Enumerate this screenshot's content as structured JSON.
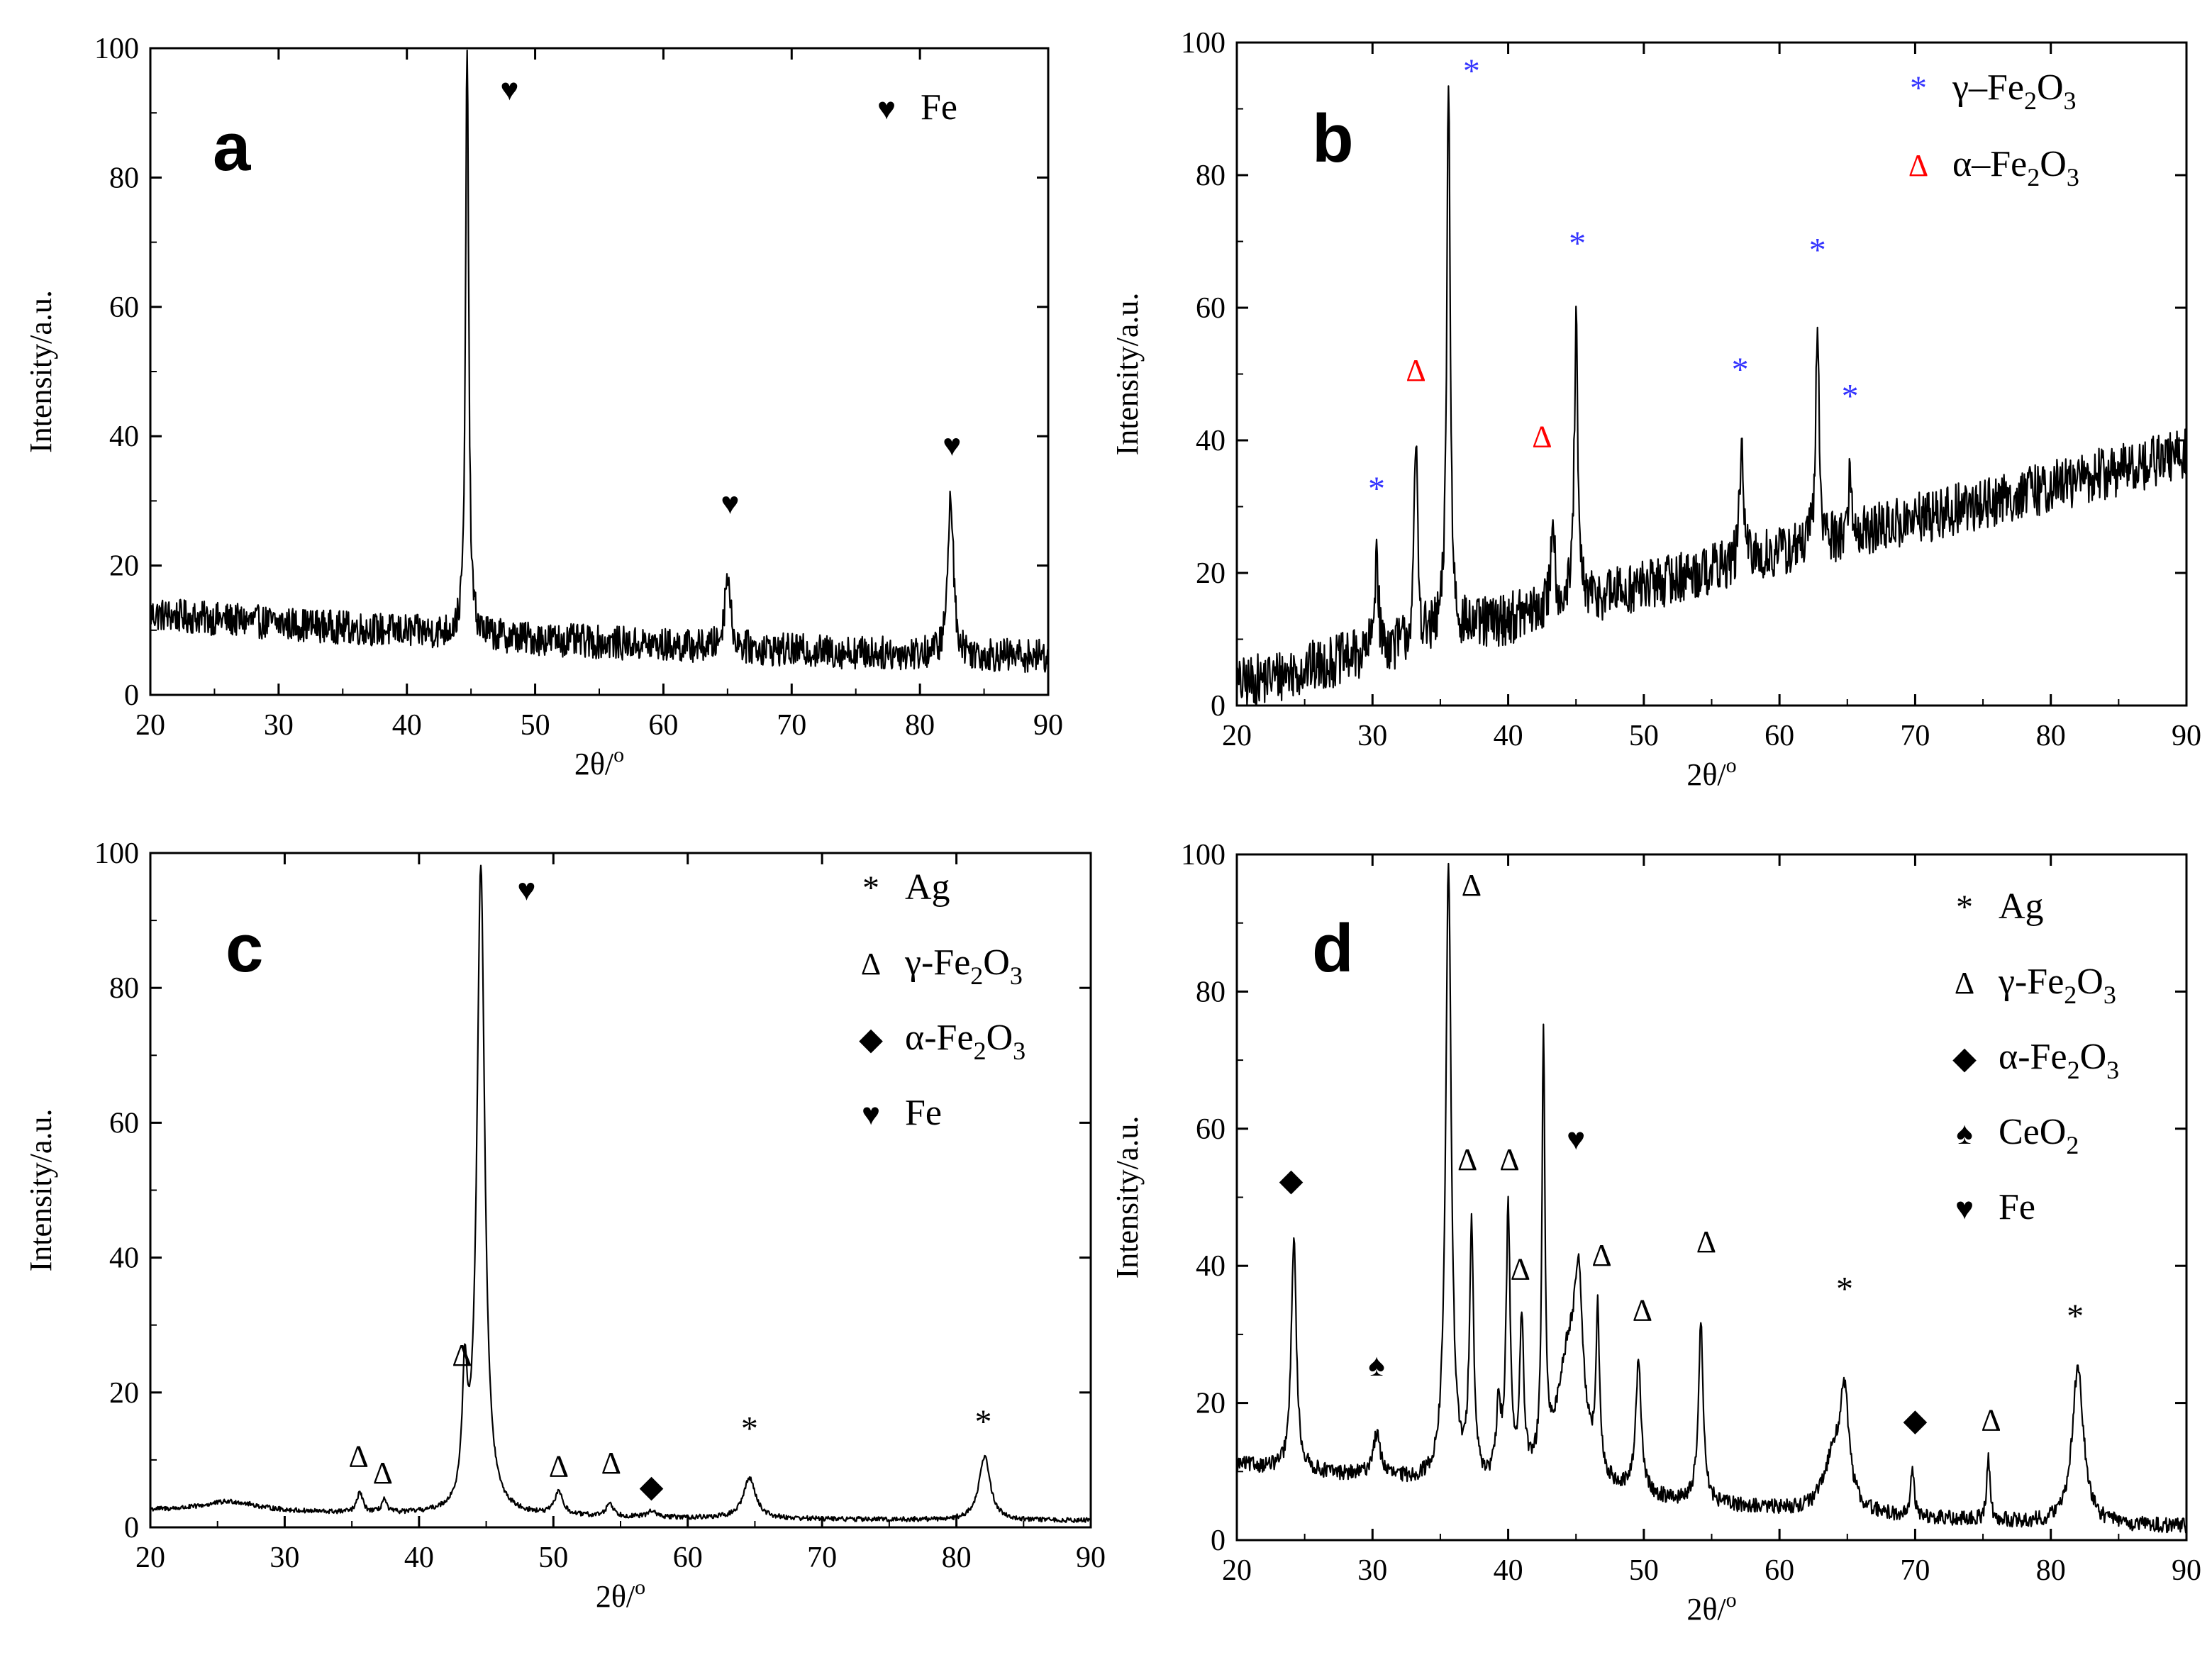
{
  "figure": {
    "description_domain": "XRD patterns, four panels"
  },
  "chart_data": [
    {
      "id": "a",
      "type": "line",
      "panel_label": "a",
      "xlabel": "2θ/",
      "xlabel_sup": "o",
      "ylabel": "Intensity/a.u.",
      "xlim": [
        20,
        90
      ],
      "ylim": [
        0,
        100
      ],
      "xticks": [
        20,
        30,
        40,
        50,
        60,
        70,
        80,
        90
      ],
      "yticks": [
        0,
        20,
        40,
        60,
        80,
        100
      ],
      "line_color": "#000000",
      "baseline": {
        "start": 12.5,
        "end": 6,
        "noise": 2.6
      },
      "peaks": [
        {
          "x": 44.7,
          "h": 93,
          "w": 0.14
        },
        {
          "x": 65.0,
          "h": 12,
          "w": 0.25
        },
        {
          "x": 82.4,
          "h": 25,
          "w": 0.25
        }
      ],
      "markers": [
        {
          "symbol": "♥",
          "x": 48.0,
          "y": 92,
          "color": "#000000"
        },
        {
          "symbol": "♥",
          "x": 65.2,
          "y": 28,
          "color": "#000000"
        },
        {
          "symbol": "♥",
          "x": 82.5,
          "y": 37,
          "color": "#000000"
        }
      ],
      "legend": [
        {
          "symbol": "♥",
          "label": "Fe",
          "sub": "",
          "color": "#000000"
        }
      ],
      "legend_position": "top-right"
    },
    {
      "id": "b",
      "type": "line",
      "panel_label": "b",
      "xlabel": "2θ/",
      "xlabel_sup": "o",
      "ylabel": "Intensity/a.u.",
      "xlim": [
        20,
        90
      ],
      "ylim": [
        0,
        100
      ],
      "xticks": [
        20,
        30,
        40,
        50,
        60,
        70,
        80,
        90
      ],
      "yticks": [
        0,
        20,
        40,
        60,
        80,
        100
      ],
      "line_color": "#000000",
      "baseline": {
        "start": 3,
        "end": 38,
        "noise": 4
      },
      "peaks": [
        {
          "x": 30.3,
          "h": 16,
          "w": 0.15
        },
        {
          "x": 33.2,
          "h": 30,
          "w": 0.15
        },
        {
          "x": 35.6,
          "h": 84,
          "w": 0.15
        },
        {
          "x": 43.3,
          "h": 15,
          "w": 0.15
        },
        {
          "x": 45.0,
          "h": 42,
          "w": 0.15
        },
        {
          "x": 57.2,
          "h": 19,
          "w": 0.15
        },
        {
          "x": 62.8,
          "h": 33,
          "w": 0.15
        },
        {
          "x": 65.2,
          "h": 9,
          "w": 0.15
        }
      ],
      "markers": [
        {
          "symbol": "*",
          "x": 30.3,
          "y": 31,
          "color": "#3333ff"
        },
        {
          "symbol": "Δ",
          "x": 33.2,
          "y": 49,
          "color": "#ff0000"
        },
        {
          "symbol": "*",
          "x": 37.3,
          "y": 94,
          "color": "#3333ff"
        },
        {
          "symbol": "Δ",
          "x": 42.5,
          "y": 39,
          "color": "#ff0000"
        },
        {
          "symbol": "*",
          "x": 45.1,
          "y": 68,
          "color": "#3333ff"
        },
        {
          "symbol": "*",
          "x": 57.1,
          "y": 49,
          "color": "#3333ff"
        },
        {
          "symbol": "*",
          "x": 62.8,
          "y": 67,
          "color": "#3333ff"
        },
        {
          "symbol": "*",
          "x": 65.2,
          "y": 45,
          "color": "#3333ff"
        }
      ],
      "legend": [
        {
          "symbol": "*",
          "label": "γ–Fe",
          "sub": "2",
          "label2": "O",
          "sub2": "3",
          "color": "#3333ff"
        },
        {
          "symbol": "Δ",
          "label": "α–Fe",
          "sub": "2",
          "label2": "O",
          "sub2": "3",
          "color": "#ff0000"
        }
      ],
      "legend_position": "top-right"
    },
    {
      "id": "c",
      "type": "line",
      "panel_label": "c",
      "xlabel": "2θ/",
      "xlabel_sup": "o",
      "ylabel": "Intensity/a.u.",
      "xlim": [
        20,
        90
      ],
      "ylim": [
        0,
        100
      ],
      "xticks": [
        20,
        30,
        40,
        50,
        60,
        70,
        80,
        90
      ],
      "yticks": [
        0,
        20,
        40,
        60,
        80,
        100
      ],
      "line_color": "#000000",
      "baseline": {
        "start": 2.5,
        "end": 1,
        "noise": 0.35
      },
      "peaks": [
        {
          "x": 26.0,
          "h": 1.5,
          "w": 2.5
        },
        {
          "x": 35.6,
          "h": 3,
          "w": 0.25
        },
        {
          "x": 37.4,
          "h": 2,
          "w": 0.2
        },
        {
          "x": 43.4,
          "h": 18,
          "w": 0.22
        },
        {
          "x": 44.6,
          "h": 96,
          "w": 0.35
        },
        {
          "x": 50.4,
          "h": 3.5,
          "w": 0.35
        },
        {
          "x": 54.2,
          "h": 2,
          "w": 0.3
        },
        {
          "x": 57.3,
          "h": 1,
          "w": 0.3
        },
        {
          "x": 64.6,
          "h": 6,
          "w": 0.55
        },
        {
          "x": 82.1,
          "h": 9.5,
          "w": 0.5
        }
      ],
      "markers": [
        {
          "symbol": "Δ",
          "x": 35.5,
          "y": 9,
          "color": "#000000"
        },
        {
          "symbol": "Δ",
          "x": 37.3,
          "y": 6.5,
          "color": "#000000"
        },
        {
          "symbol": "Δ",
          "x": 43.2,
          "y": 24,
          "color": "#000000"
        },
        {
          "symbol": "♥",
          "x": 48.0,
          "y": 93,
          "color": "#000000"
        },
        {
          "symbol": "Δ",
          "x": 50.4,
          "y": 7.5,
          "color": "#000000"
        },
        {
          "symbol": "Δ",
          "x": 54.3,
          "y": 8,
          "color": "#000000"
        },
        {
          "symbol": "◆",
          "x": 57.3,
          "y": 4.5,
          "color": "#000000"
        },
        {
          "symbol": "*",
          "x": 64.6,
          "y": 13,
          "color": "#000000"
        },
        {
          "symbol": "*",
          "x": 82.0,
          "y": 14,
          "color": "#000000"
        }
      ],
      "legend": [
        {
          "symbol": "*",
          "label": "Ag",
          "sub": "",
          "color": "#000000"
        },
        {
          "symbol": "Δ",
          "label": "γ-Fe",
          "sub": "2",
          "label2": "O",
          "sub2": "3",
          "color": "#000000"
        },
        {
          "symbol": "◆",
          "label": "α-Fe",
          "sub": "2",
          "label2": "O",
          "sub2": "3",
          "color": "#000000"
        },
        {
          "symbol": "♥",
          "label": "Fe",
          "sub": "",
          "color": "#000000"
        }
      ],
      "legend_position": "top-right"
    },
    {
      "id": "d",
      "type": "line",
      "panel_label": "d",
      "xlabel": "2θ/",
      "xlabel_sup": "o",
      "ylabel": "Intensity/a.u.",
      "xlim": [
        20,
        90
      ],
      "ylim": [
        0,
        100
      ],
      "xticks": [
        20,
        30,
        40,
        50,
        60,
        70,
        80,
        90
      ],
      "yticks": [
        0,
        20,
        40,
        60,
        80,
        100
      ],
      "line_color": "#000000",
      "baseline": {
        "start": 11,
        "end": 2,
        "noise": 1.1
      },
      "peaks": [
        {
          "x": 24.2,
          "h": 34,
          "w": 0.22
        },
        {
          "x": 30.3,
          "h": 6,
          "w": 0.35
        },
        {
          "x": 35.6,
          "h": 89,
          "w": 0.25
        },
        {
          "x": 37.3,
          "h": 37,
          "w": 0.18
        },
        {
          "x": 39.3,
          "h": 10,
          "w": 0.2
        },
        {
          "x": 40.0,
          "h": 39,
          "w": 0.18
        },
        {
          "x": 41.0,
          "h": 22,
          "w": 0.18
        },
        {
          "x": 42.6,
          "h": 62,
          "w": 0.13
        },
        {
          "x": 44.5,
          "h": 20,
          "w": 1.1
        },
        {
          "x": 45.2,
          "h": 20,
          "w": 0.35
        },
        {
          "x": 46.6,
          "h": 23,
          "w": 0.15
        },
        {
          "x": 49.6,
          "h": 19,
          "w": 0.25
        },
        {
          "x": 54.2,
          "h": 26,
          "w": 0.22
        },
        {
          "x": 64.0,
          "h": 8,
          "w": 0.8
        },
        {
          "x": 64.8,
          "h": 15,
          "w": 0.4
        },
        {
          "x": 69.8,
          "h": 7,
          "w": 0.15
        },
        {
          "x": 75.4,
          "h": 9,
          "w": 0.15
        },
        {
          "x": 82.0,
          "h": 23,
          "w": 0.5
        }
      ],
      "markers": [
        {
          "symbol": "◆",
          "x": 24.0,
          "y": 51,
          "color": "#000000"
        },
        {
          "symbol": "♠",
          "x": 30.3,
          "y": 24,
          "color": "#000000"
        },
        {
          "symbol": "Δ",
          "x": 37.3,
          "y": 94,
          "color": "#000000"
        },
        {
          "symbol": "Δ",
          "x": 37.0,
          "y": 54,
          "color": "#000000"
        },
        {
          "symbol": "Δ",
          "x": 40.1,
          "y": 54,
          "color": "#000000"
        },
        {
          "symbol": "Δ",
          "x": 40.9,
          "y": 38,
          "color": "#000000"
        },
        {
          "symbol": "♥",
          "x": 45.0,
          "y": 57,
          "color": "#000000"
        },
        {
          "symbol": "Δ",
          "x": 46.9,
          "y": 40,
          "color": "#000000"
        },
        {
          "symbol": "Δ",
          "x": 49.9,
          "y": 32,
          "color": "#000000"
        },
        {
          "symbol": "Δ",
          "x": 54.6,
          "y": 42,
          "color": "#000000"
        },
        {
          "symbol": "*",
          "x": 64.8,
          "y": 35,
          "color": "#000000"
        },
        {
          "symbol": "◆",
          "x": 70.0,
          "y": 16,
          "color": "#000000"
        },
        {
          "symbol": "Δ",
          "x": 75.6,
          "y": 16,
          "color": "#000000"
        },
        {
          "symbol": "*",
          "x": 81.8,
          "y": 31,
          "color": "#000000"
        }
      ],
      "legend": [
        {
          "symbol": "*",
          "label": "Ag",
          "sub": "",
          "color": "#000000"
        },
        {
          "symbol": "Δ",
          "label": "γ-Fe",
          "sub": "2",
          "label2": "O",
          "sub2": "3",
          "color": "#000000"
        },
        {
          "symbol": "◆",
          "label": "α-Fe",
          "sub": "2",
          "label2": "O",
          "sub2": "3",
          "color": "#000000"
        },
        {
          "symbol": "♠",
          "label": "CeO",
          "sub": "2",
          "color": "#000000"
        },
        {
          "symbol": "♥",
          "label": "Fe",
          "sub": "",
          "color": "#000000"
        }
      ],
      "legend_position": "top-right"
    }
  ]
}
